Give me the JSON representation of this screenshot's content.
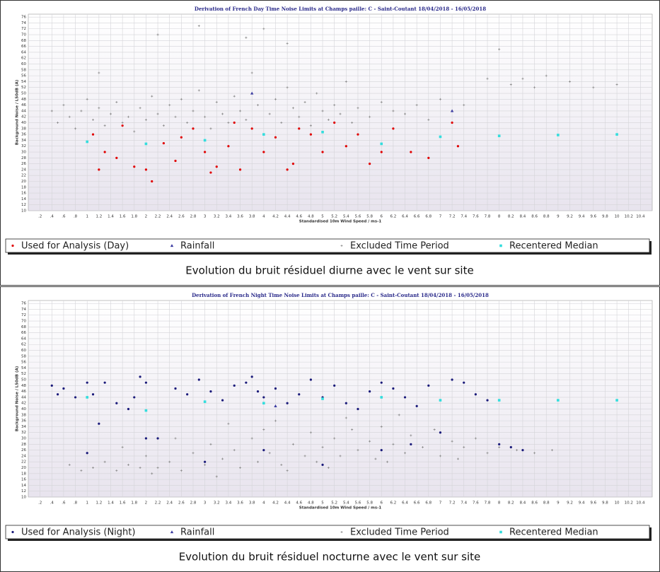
{
  "chart_data": [
    {
      "type": "scatter",
      "title": "Derivation of French Day Time Noise Limits at Champs paille: C - Saint-Coutant 18/04/2018 - 16/05/2018",
      "x_label": "Standardised 10m Wind Speed / ms-1",
      "y_label": "Background Noise / L50dB (A)",
      "xlim": [
        0,
        10.6
      ],
      "ylim": [
        10,
        77
      ],
      "xticks": [
        {
          "value": 0.2,
          "label": ".2"
        },
        {
          "value": 0.4,
          "label": ".4"
        },
        {
          "value": 0.6,
          "label": ".6"
        },
        {
          "value": 0.8,
          "label": ".8"
        },
        1,
        1.2,
        1.4,
        1.6,
        1.8,
        2,
        2.2,
        2.4,
        2.6,
        2.8,
        3,
        3.2,
        3.4,
        3.6,
        3.8,
        4,
        4.2,
        4.4,
        4.6,
        4.8,
        5,
        5.2,
        5.4,
        5.6,
        5.8,
        6,
        6.2,
        6.4,
        6.6,
        6.8,
        7,
        7.2,
        7.4,
        7.6,
        7.8,
        8,
        8.2,
        8.4,
        8.6,
        8.8,
        9,
        9.2,
        9.4,
        9.6,
        9.8,
        10,
        10.2,
        10.4
      ],
      "yticks": [
        10,
        12,
        14,
        16,
        18,
        20,
        22,
        24,
        26,
        28,
        30,
        32,
        34,
        36,
        38,
        40,
        42,
        44,
        46,
        48,
        50,
        52,
        54,
        56,
        58,
        60,
        62,
        64,
        66,
        68,
        70,
        72,
        74,
        76
      ],
      "grid": true,
      "series": [
        {
          "name": "Used for Analysis (Day)",
          "color": "#e00000",
          "marker": "circle",
          "x": [
            1.1,
            1.2,
            1.3,
            1.5,
            1.8,
            2.0,
            2.1,
            2.3,
            2.5,
            2.8,
            3.0,
            3.1,
            3.2,
            3.4,
            3.6,
            3.8,
            4.0,
            4.2,
            4.4,
            4.6,
            4.8,
            5.0,
            5.2,
            5.4,
            5.6,
            5.8,
            6.0,
            6.2,
            6.5,
            6.8,
            7.2,
            7.3,
            1.6,
            2.6,
            3.5,
            4.5
          ],
          "values": [
            36,
            24,
            30,
            28,
            25,
            24,
            20,
            33,
            27,
            38,
            30,
            23,
            25,
            32,
            24,
            38,
            30,
            35,
            24,
            38,
            36,
            30,
            40,
            32,
            36,
            26,
            30,
            38,
            30,
            28,
            40,
            32,
            39,
            35,
            40,
            26
          ]
        },
        {
          "name": "Rainfall",
          "color": "#3a3aa0",
          "marker": "triangle",
          "x": [
            3.8,
            7.2
          ],
          "values": [
            50,
            44
          ]
        },
        {
          "name": "Excluded Time Period",
          "color": "#8a8a8a",
          "marker": "plus",
          "x": [
            0.4,
            0.5,
            0.6,
            0.7,
            0.8,
            0.9,
            1.0,
            1.1,
            1.2,
            1.3,
            1.4,
            1.5,
            1.6,
            1.7,
            1.8,
            1.9,
            2.0,
            2.1,
            2.2,
            2.3,
            2.4,
            2.5,
            2.6,
            2.7,
            2.8,
            2.9,
            3.0,
            3.1,
            3.2,
            3.3,
            3.4,
            3.5,
            3.6,
            3.7,
            3.8,
            3.9,
            4.0,
            4.1,
            4.2,
            4.3,
            4.4,
            4.5,
            4.6,
            4.7,
            4.8,
            4.9,
            5.0,
            5.1,
            5.2,
            5.3,
            5.4,
            5.5,
            5.6,
            5.8,
            6.0,
            6.2,
            6.4,
            6.6,
            6.8,
            7.0,
            7.4,
            7.8,
            8.0,
            8.2,
            8.4,
            8.6,
            8.8,
            9.2,
            9.6,
            10.0,
            2.2,
            2.9,
            1.2,
            3.7,
            4.4
          ],
          "values": [
            44,
            40,
            46,
            42,
            38,
            44,
            48,
            41,
            45,
            39,
            43,
            47,
            40,
            42,
            37,
            45,
            41,
            49,
            43,
            39,
            46,
            42,
            48,
            40,
            44,
            51,
            42,
            38,
            47,
            43,
            40,
            49,
            44,
            41,
            57,
            46,
            72,
            43,
            48,
            40,
            52,
            45,
            42,
            47,
            39,
            50,
            44,
            41,
            46,
            43,
            54,
            40,
            45,
            42,
            47,
            44,
            43,
            46,
            41,
            48,
            46,
            55,
            65,
            53,
            55,
            52,
            56,
            54,
            52,
            53,
            70,
            73,
            57,
            69,
            67
          ]
        },
        {
          "name": "Recentered Median",
          "color": "#33dddd",
          "marker": "square",
          "x": [
            1,
            2,
            3,
            4,
            5,
            6,
            7,
            8,
            9,
            10
          ],
          "values": [
            33.5,
            32.8,
            34,
            36,
            36.8,
            32.8,
            35.2,
            35.5,
            35.8,
            36
          ]
        }
      ]
    },
    {
      "type": "scatter",
      "title": "Derivation of French Night Time Noise Limits at Champs paille: C - Saint-Coutant 18/04/2018 - 16/05/2018",
      "x_label": "Standardised 10m Wind Speed / ms-1",
      "y_label": "Background Noise / L50dB (A)",
      "xlim": [
        0,
        10.6
      ],
      "ylim": [
        10,
        77
      ],
      "xticks": [
        {
          "value": 0.2,
          "label": ".2"
        },
        {
          "value": 0.4,
          "label": ".4"
        },
        {
          "value": 0.6,
          "label": ".6"
        },
        {
          "value": 0.8,
          "label": ".8"
        },
        1,
        1.2,
        1.4,
        1.6,
        1.8,
        2,
        2.2,
        2.4,
        2.6,
        2.8,
        3,
        3.2,
        3.4,
        3.6,
        3.8,
        4,
        4.2,
        4.4,
        4.6,
        4.8,
        5,
        5.2,
        5.4,
        5.6,
        5.8,
        6,
        6.2,
        6.4,
        6.6,
        6.8,
        7,
        7.2,
        7.4,
        7.6,
        7.8,
        8,
        8.2,
        8.4,
        8.6,
        8.8,
        9,
        9.2,
        9.4,
        9.6,
        9.8,
        10,
        10.2,
        10.4
      ],
      "yticks": [
        10,
        12,
        14,
        16,
        18,
        20,
        22,
        24,
        26,
        28,
        30,
        32,
        34,
        36,
        38,
        40,
        42,
        44,
        46,
        48,
        50,
        52,
        54,
        56,
        58,
        60,
        62,
        64,
        66,
        68,
        70,
        72,
        74,
        76
      ],
      "grid": true,
      "series": [
        {
          "name": "Used for Analysis (Night)",
          "color": "#1a1a7a",
          "marker": "circle",
          "x": [
            0.4,
            0.5,
            0.6,
            0.8,
            1.0,
            1.1,
            1.2,
            1.3,
            1.5,
            1.7,
            1.8,
            1.9,
            2.0,
            2.2,
            2.5,
            2.7,
            2.9,
            3.1,
            3.3,
            3.5,
            3.7,
            3.8,
            3.9,
            4.0,
            4.2,
            4.4,
            4.6,
            4.8,
            5.0,
            5.2,
            5.4,
            5.6,
            5.8,
            6.0,
            6.2,
            6.4,
            6.6,
            6.8,
            7.0,
            7.2,
            7.4,
            7.6,
            7.8,
            8.0,
            8.2,
            8.4,
            1.0,
            2.0,
            3.0,
            4.0,
            5.0,
            6.0,
            6.5
          ],
          "values": [
            48,
            45,
            47,
            44,
            49,
            45,
            35,
            49,
            42,
            40,
            44,
            51,
            49,
            30,
            47,
            45,
            50,
            46,
            43,
            48,
            49,
            51,
            46,
            44,
            47,
            42,
            45,
            50,
            44,
            48,
            42,
            40,
            46,
            49,
            47,
            44,
            41,
            48,
            32,
            50,
            49,
            45,
            43,
            28,
            27,
            26,
            25,
            30,
            22,
            26,
            21,
            26,
            28
          ]
        },
        {
          "name": "Rainfall",
          "color": "#3a3aa0",
          "marker": "triangle",
          "x": [
            4.2
          ],
          "values": [
            41
          ]
        },
        {
          "name": "Excluded Time Period",
          "color": "#8a8a8a",
          "marker": "plus",
          "x": [
            0.7,
            0.9,
            1.1,
            1.3,
            1.5,
            1.7,
            1.9,
            2.0,
            2.2,
            2.4,
            2.6,
            2.8,
            3.0,
            3.1,
            3.3,
            3.5,
            3.6,
            3.8,
            3.9,
            4.0,
            4.1,
            4.3,
            4.5,
            4.7,
            4.8,
            4.9,
            5.0,
            5.2,
            5.3,
            5.5,
            5.6,
            5.8,
            5.9,
            6.0,
            6.2,
            6.4,
            6.5,
            6.7,
            6.9,
            7.0,
            7.2,
            7.4,
            7.6,
            7.8,
            8.0,
            8.3,
            8.6,
            8.9,
            1.6,
            2.5,
            3.4,
            4.2,
            5.4,
            6.3,
            2.1,
            3.2,
            4.4,
            5.1,
            6.1,
            7.3
          ],
          "values": [
            21,
            19,
            20,
            22,
            19,
            21,
            20,
            24,
            20,
            22,
            19,
            25,
            21,
            28,
            23,
            26,
            20,
            30,
            22,
            33,
            25,
            21,
            28,
            24,
            32,
            22,
            27,
            30,
            24,
            33,
            26,
            29,
            23,
            34,
            28,
            25,
            31,
            27,
            33,
            24,
            29,
            27,
            30,
            25,
            27,
            26,
            25,
            26,
            27,
            30,
            35,
            36,
            37,
            38,
            18,
            17,
            19,
            20,
            22,
            23
          ]
        },
        {
          "name": "Recentered Median",
          "color": "#33dddd",
          "marker": "square",
          "x": [
            1,
            2,
            3,
            4,
            5,
            6,
            7,
            8,
            9,
            10
          ],
          "values": [
            44,
            39.5,
            42.5,
            42,
            43.5,
            44,
            43,
            43,
            43,
            43
          ]
        }
      ]
    }
  ],
  "captions": [
    "Evolution du bruit résiduel diurne avec le vent sur site",
    "Evolution du bruit résiduel nocturne avec le vent sur site"
  ]
}
